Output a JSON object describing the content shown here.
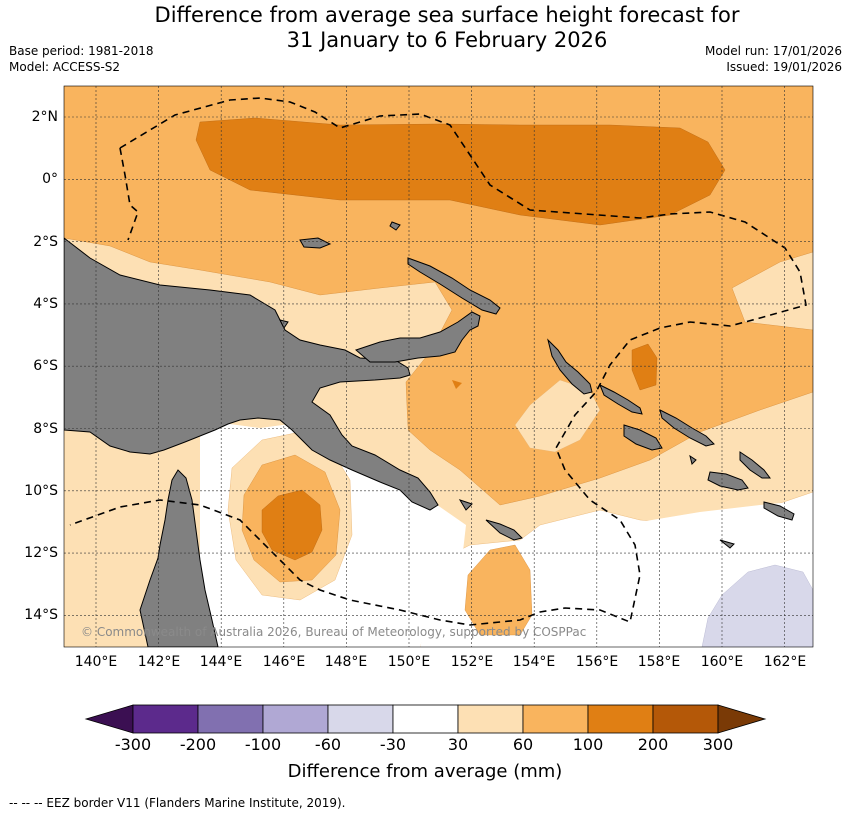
{
  "title_line1": "Difference from average sea surface height forecast for",
  "title_line2": "31 January to 6 February 2026",
  "base_period": "Base period: 1981-2018",
  "model": "Model: ACCESS-S2",
  "model_run": "Model run: 17/01/2026",
  "issued": "Issued: 19/01/2026",
  "copyright": "© Commonwealth of Australia 2026, Bureau of Meteorology, supported by COSPPac",
  "lat_labels": [
    "2°N",
    "0°",
    "2°S",
    "4°S",
    "6°S",
    "8°S",
    "10°S",
    "12°S",
    "14°S"
  ],
  "lon_labels": [
    "140°E",
    "142°E",
    "144°E",
    "146°E",
    "148°E",
    "150°E",
    "152°E",
    "154°E",
    "156°E",
    "158°E",
    "160°E",
    "162°E"
  ],
  "colorbar": {
    "title": "Difference from average (mm)",
    "labels": [
      "-300",
      "-200",
      "-100",
      "-60",
      "-30",
      "30",
      "60",
      "100",
      "200",
      "300"
    ],
    "colors": [
      "#3b0f52",
      "#5c2a8c",
      "#8170b0",
      "#b0a8d4",
      "#d8d8ea",
      "#ffffff",
      "#fde0b4",
      "#f9b45e",
      "#e07f14",
      "#b45808",
      "#7a3a06"
    ]
  },
  "footer": "--  --  -- EEZ border V11 (Flanders Marine Institute, 2019)."
}
